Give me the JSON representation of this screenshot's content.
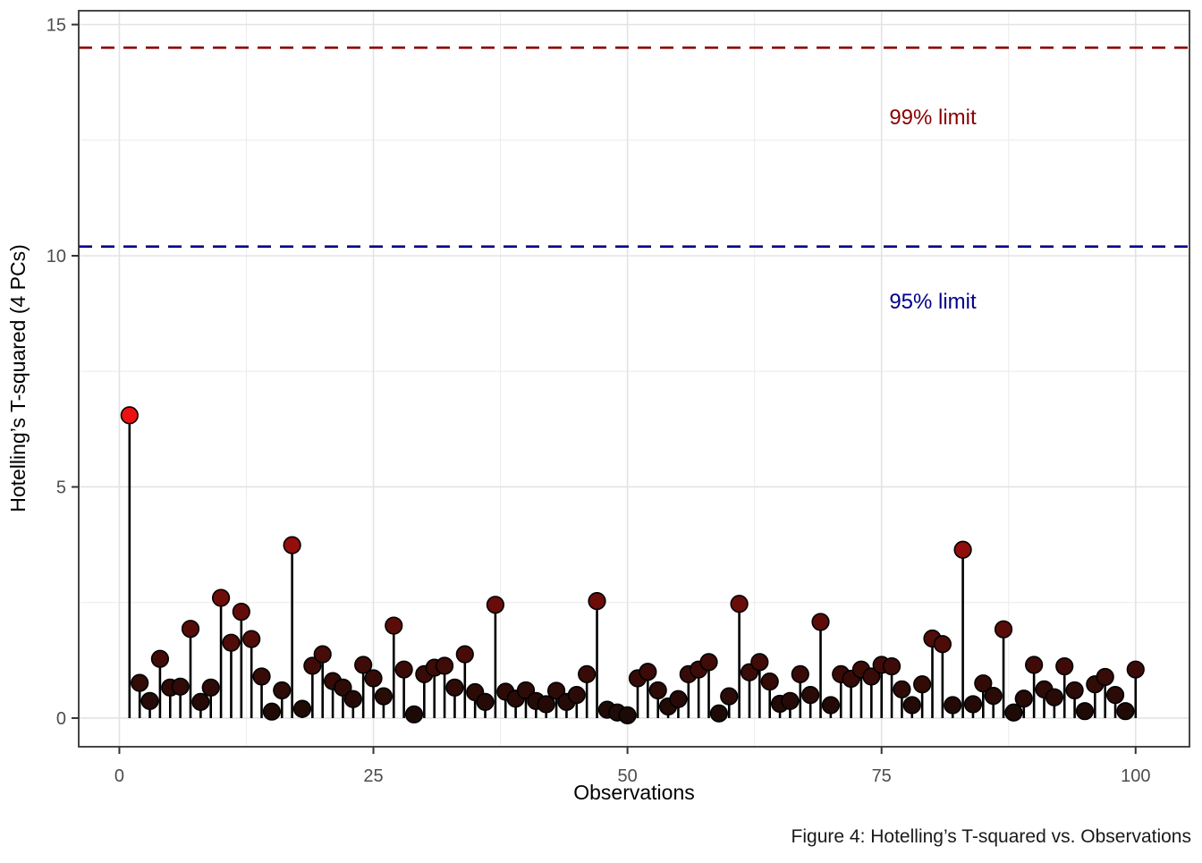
{
  "figure": {
    "caption": "Figure 4: Hotelling’s T-squared vs. Observations"
  },
  "chart_data": {
    "type": "scatter",
    "subtype": "lollipop-stem",
    "title": "",
    "xlabel": "Observations",
    "ylabel": "Hotelling’s T-squared (4 PCs)",
    "caption": "Figure 4: Hotelling’s T-squared vs. Observations",
    "xlim": [
      -4,
      105.3
    ],
    "ylim": [
      -0.62,
      15.3
    ],
    "xticks": [
      0,
      25,
      50,
      75,
      100
    ],
    "yticks": [
      0,
      5,
      10,
      15
    ],
    "xminor": [
      12.5,
      37.5,
      62.5,
      87.5
    ],
    "yminor": [
      2.5,
      7.5,
      12.5
    ],
    "grid": true,
    "legend": "none",
    "x": [
      1,
      2,
      3,
      4,
      5,
      6,
      7,
      8,
      9,
      10,
      11,
      12,
      13,
      14,
      15,
      16,
      17,
      18,
      19,
      20,
      21,
      22,
      23,
      24,
      25,
      26,
      27,
      28,
      29,
      30,
      31,
      32,
      33,
      34,
      35,
      36,
      37,
      38,
      39,
      40,
      41,
      42,
      43,
      44,
      45,
      46,
      47,
      48,
      49,
      50,
      51,
      52,
      53,
      54,
      55,
      56,
      57,
      58,
      59,
      60,
      61,
      62,
      63,
      64,
      65,
      66,
      67,
      68,
      69,
      70,
      71,
      72,
      73,
      74,
      75,
      76,
      77,
      78,
      79,
      80,
      81,
      82,
      83,
      84,
      85,
      86,
      87,
      88,
      89,
      90,
      91,
      92,
      93,
      94,
      95,
      96,
      97,
      98,
      99,
      100
    ],
    "values": [
      6.55,
      0.76,
      0.37,
      1.28,
      0.66,
      0.68,
      1.93,
      0.35,
      0.66,
      2.6,
      1.63,
      2.3,
      1.71,
      0.9,
      0.14,
      0.6,
      3.74,
      0.2,
      1.13,
      1.38,
      0.8,
      0.66,
      0.41,
      1.15,
      0.86,
      0.47,
      2.0,
      1.05,
      0.08,
      0.95,
      1.09,
      1.13,
      0.66,
      1.38,
      0.56,
      0.35,
      2.45,
      0.57,
      0.42,
      0.6,
      0.37,
      0.3,
      0.59,
      0.35,
      0.5,
      0.95,
      2.53,
      0.18,
      0.12,
      0.06,
      0.86,
      1.0,
      0.6,
      0.25,
      0.41,
      0.95,
      1.05,
      1.21,
      0.1,
      0.47,
      2.47,
      0.99,
      1.21,
      0.79,
      0.31,
      0.37,
      0.95,
      0.5,
      2.08,
      0.28,
      0.95,
      0.85,
      1.05,
      0.9,
      1.15,
      1.12,
      0.62,
      0.28,
      0.73,
      1.72,
      1.6,
      0.28,
      3.64,
      0.3,
      0.75,
      0.48,
      1.92,
      0.12,
      0.42,
      1.15,
      0.62,
      0.45,
      1.12,
      0.6,
      0.15,
      0.73,
      0.89,
      0.5,
      0.15,
      1.05
    ],
    "limit_lines": [
      {
        "label": "99% limit",
        "value": 14.5,
        "color": "#8B0000"
      },
      {
        "label": "95% limit",
        "value": 10.2,
        "color": "#00008B"
      }
    ],
    "colors": {
      "point_low": "#1A0A06",
      "point_high": "#EE1111",
      "point_scale_max": 6.55,
      "point_stroke": "#000000",
      "stem": "#000000",
      "grid_major": "#E3E3E3",
      "grid_minor": "#ECECEC",
      "panel_border": "#333333",
      "tick_mark": "#333333",
      "tick_label": "#4D4D4D",
      "background": "#FFFFFF"
    }
  }
}
